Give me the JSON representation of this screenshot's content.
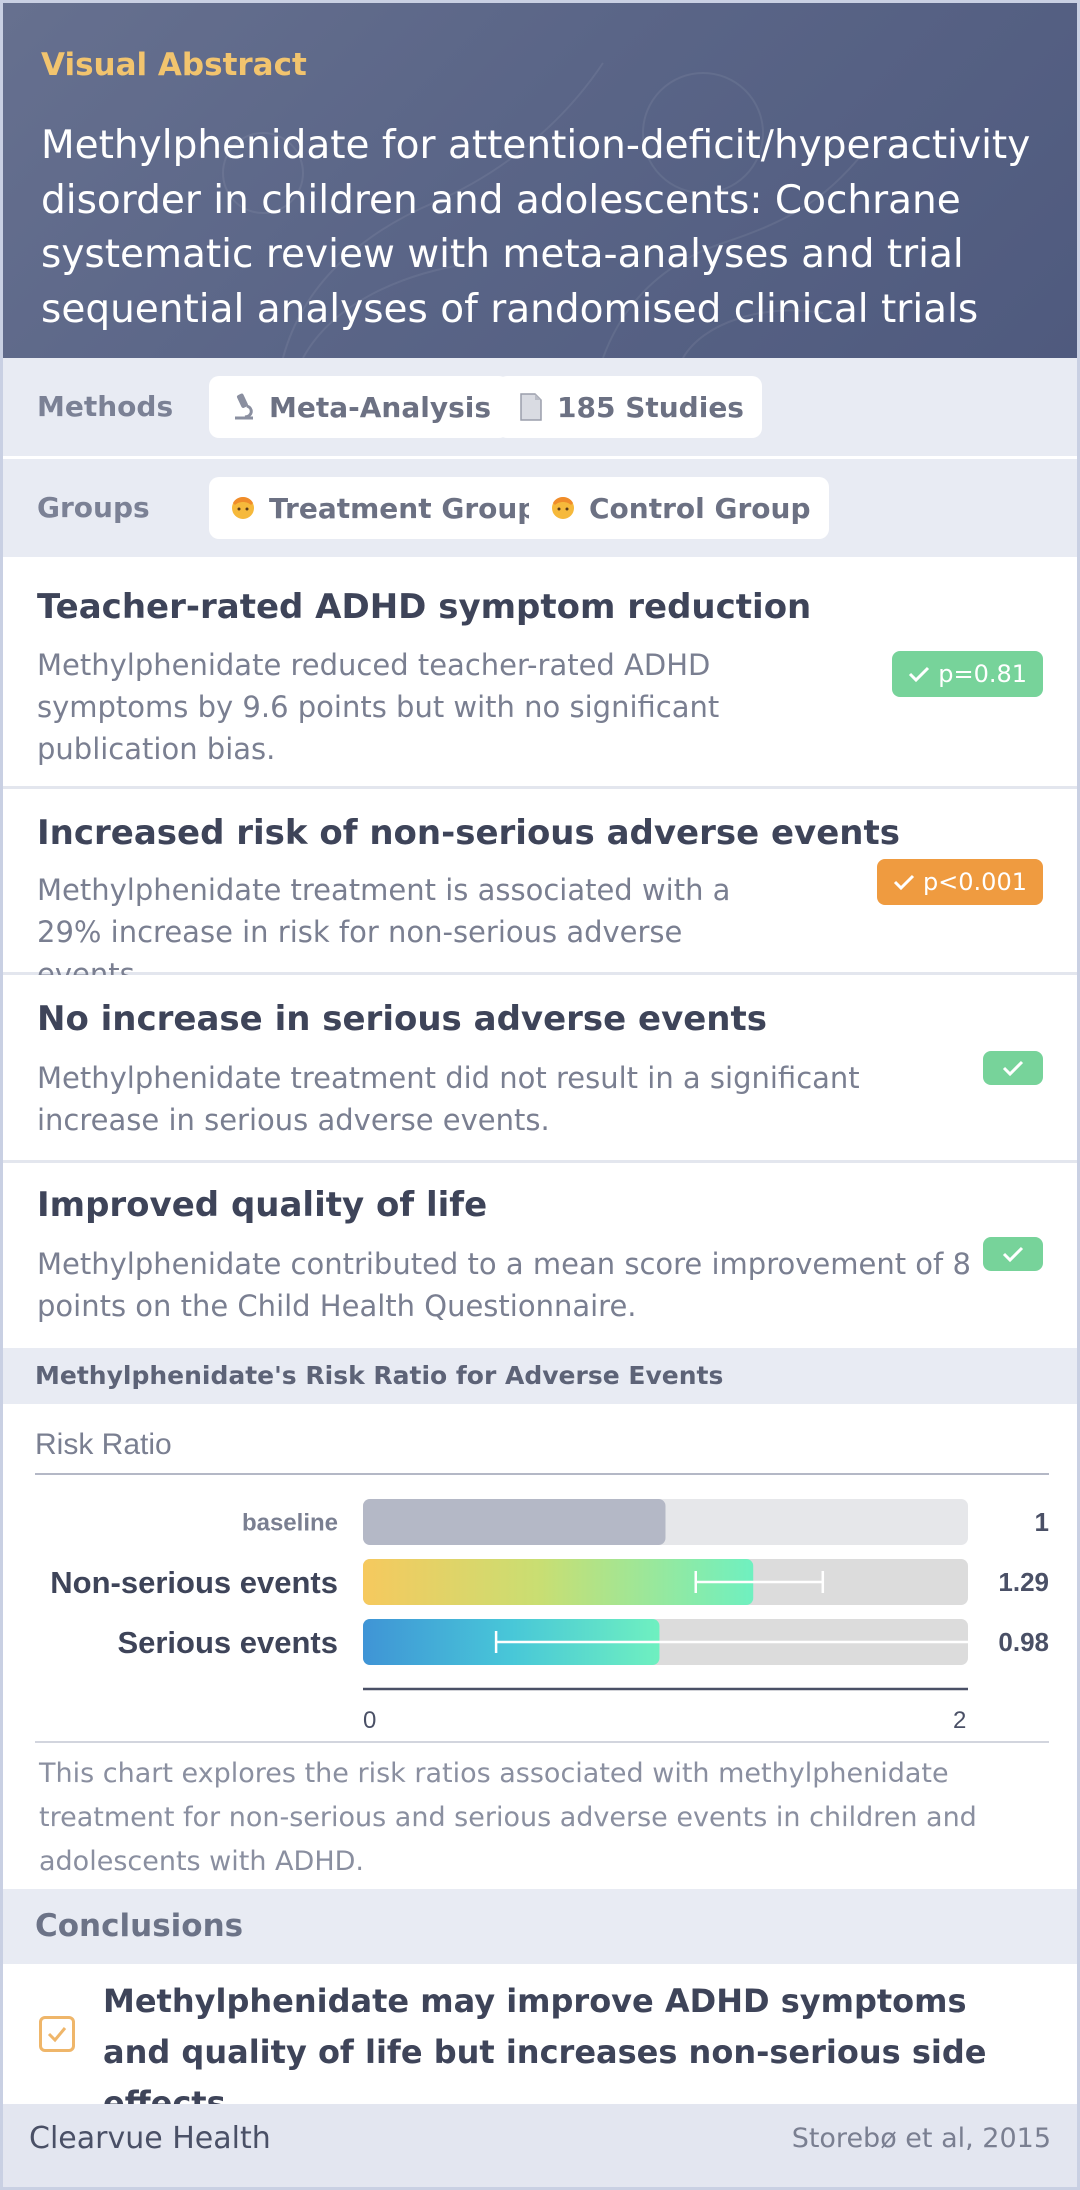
{
  "header": {
    "label": "Visual Abstract",
    "title": "Methylphenidate for attention-deficit/hyperactivity disorder in children and adolescents: Cochrane systematic review with meta-analyses and trial sequential analyses of randomised clinical trials"
  },
  "methods": {
    "label": "Methods",
    "chips": [
      {
        "label": "Meta-Analysis",
        "icon": "microscope-icon"
      },
      {
        "label": "185 Studies",
        "icon": "document-icon"
      }
    ]
  },
  "groups": {
    "label": "Groups",
    "chips": [
      {
        "label": "Treatment Group",
        "icon": "person-icon"
      },
      {
        "label": "Control Group",
        "icon": "person-icon"
      }
    ]
  },
  "findings": [
    {
      "title": "Teacher-rated ADHD symptom reduction",
      "description": "Methylphenidate reduced teacher-rated ADHD symptoms by 9.6 points but with no significant publication bias.",
      "badge": "p=0.81",
      "badge_color": "#77d39a"
    },
    {
      "title": "Increased risk of non-serious adverse events",
      "description": "Methylphenidate treatment is associated with a 29% increase in risk for non-serious adverse events.",
      "badge": "p<0.001",
      "badge_color": "#ef9b40"
    },
    {
      "title": "No increase in serious adverse events",
      "description": "Methylphenidate treatment did not result in a significant increase in serious adverse events.",
      "badge": "",
      "badge_color": "#77d39a"
    },
    {
      "title": "Improved quality of life",
      "description": "Methylphenidate contributed to a mean score improvement of 8 points on the Child Health Questionnaire.",
      "badge": "",
      "badge_color": "#77d39a"
    }
  ],
  "chart_section": {
    "heading": "Methylphenidate's Risk Ratio for Adverse Events",
    "note": "This chart explores the risk ratios associated with methylphenidate treatment for non-serious and serious adverse events in children and adolescents with ADHD."
  },
  "chart_data": {
    "type": "bar",
    "orientation": "horizontal",
    "title": "Risk Ratio",
    "categories": [
      "baseline",
      "Non-serious events",
      "Serious events"
    ],
    "values": [
      1,
      1.29,
      0.98
    ],
    "value_labels": [
      "1",
      "1.29",
      "0.98"
    ],
    "error_bars": [
      null,
      [
        1.1,
        1.52
      ],
      [
        0.44,
        null
      ]
    ],
    "xlim": [
      0,
      2
    ],
    "xticks": [
      "0",
      "2"
    ],
    "colors": [
      "#b4b8c6",
      "#f6c95e",
      "#3f94d6"
    ]
  },
  "conclusions": {
    "heading": "Conclusions",
    "text": "Methylphenidate may improve ADHD symptoms and quality of life but increases non-serious side effects."
  },
  "footer": {
    "brand": "Clearvue Health",
    "citation": "Storebø et al, 2015"
  }
}
